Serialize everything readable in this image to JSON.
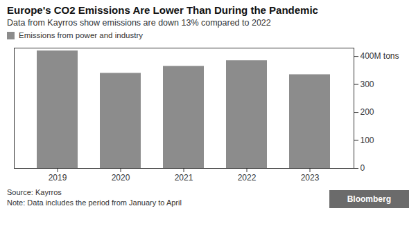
{
  "chart_data": {
    "type": "bar",
    "title": "Europe's CO2 Emissions Are Lower Than During the Pandemic",
    "subtitle": "Data from Kayrros show emissions are down 13% compared to 2022",
    "categories": [
      "2019",
      "2020",
      "2021",
      "2022",
      "2023"
    ],
    "series": [
      {
        "name": "Emissions from power and industry",
        "color": "#8c8c8c",
        "values": [
          420,
          340,
          365,
          385,
          335
        ]
      }
    ],
    "ylim": [
      0,
      430
    ],
    "yticks": [
      0,
      100,
      200,
      300,
      {
        "value": 400,
        "label": "400M tons"
      }
    ],
    "legend": "top-left",
    "grid": false,
    "caption": "Source: Kayrros\nNote: Data includes the period from January to April",
    "annotations": [
      "Bloomberg"
    ]
  }
}
